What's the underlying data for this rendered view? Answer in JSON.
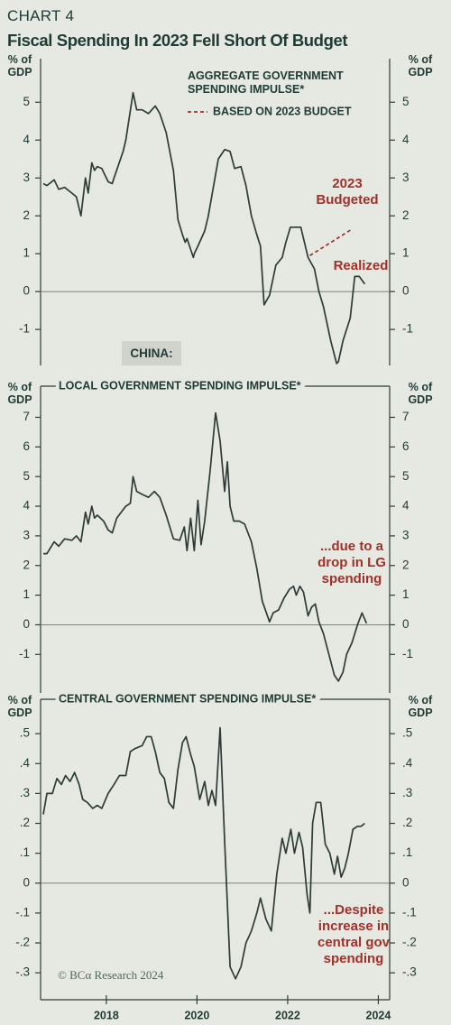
{
  "header": {
    "kicker": "CHART 4",
    "title": "Fiscal Spending In 2023 Fell Short Of Budget"
  },
  "footer": {
    "source": "© BCα Research 2024"
  },
  "chart_data": [
    {
      "type": "line",
      "ylabel": "% of GDP",
      "xlim": [
        2016.55,
        2024.25
      ],
      "ylim": [
        -1.95,
        6.15
      ],
      "yticks": [
        -1,
        0,
        1,
        2,
        3,
        4,
        5
      ],
      "annotations": [
        "2023 Budgeted",
        "Realized",
        "CHINA:"
      ],
      "series": [
        {
          "name": "AGGREGATE GOVERNMENT SPENDING IMPULSE*",
          "color": "#2d3b36",
          "dash": false,
          "x": [
            2016.61,
            2016.69,
            2016.85,
            2016.95,
            2017.08,
            2017.24,
            2017.34,
            2017.44,
            2017.54,
            2017.6,
            2017.68,
            2017.74,
            2017.8,
            2017.9,
            2018.04,
            2018.13,
            2018.17,
            2018.37,
            2018.43,
            2018.59,
            2018.67,
            2018.79,
            2018.93,
            2019.08,
            2019.18,
            2019.32,
            2019.48,
            2019.58,
            2019.68,
            2019.74,
            2019.78,
            2019.92,
            2019.94,
            2020.02,
            2020.17,
            2020.25,
            2020.47,
            2020.61,
            2020.73,
            2020.83,
            2020.97,
            2021.08,
            2021.2,
            2021.32,
            2021.4,
            2021.48,
            2021.6,
            2021.74,
            2021.88,
            2021.96,
            2022.06,
            2022.15,
            2022.29,
            2022.39,
            2022.45,
            2022.59,
            2022.69,
            2022.79,
            2022.95,
            2023.08,
            2023.12,
            2023.22,
            2023.38,
            2023.48,
            2023.58,
            2023.7
          ],
          "values": [
            2.85,
            2.8,
            2.95,
            2.7,
            2.75,
            2.6,
            2.5,
            2.0,
            3.0,
            2.6,
            3.4,
            3.2,
            3.3,
            3.25,
            2.9,
            2.85,
            3.0,
            3.7,
            4.0,
            5.25,
            4.8,
            4.8,
            4.7,
            4.9,
            4.7,
            4.2,
            3.2,
            1.9,
            1.5,
            1.3,
            1.4,
            0.9,
            1.0,
            1.2,
            1.6,
            2.0,
            3.5,
            3.75,
            3.7,
            3.25,
            3.3,
            2.8,
            2.0,
            1.5,
            1.2,
            -0.35,
            -0.1,
            0.7,
            0.9,
            1.3,
            1.7,
            1.7,
            1.7,
            1.2,
            0.9,
            0.6,
            0.0,
            -0.4,
            -1.3,
            -1.9,
            -1.85,
            -1.3,
            -0.7,
            0.4,
            0.4,
            0.2
          ]
        },
        {
          "name": "BASED ON 2023 BUDGET",
          "color": "#a0302a",
          "dash": true,
          "x": [
            2022.49,
            2023.42
          ],
          "values": [
            0.95,
            1.65
          ]
        }
      ]
    },
    {
      "type": "line",
      "ylabel": "% of GDP",
      "xlim": [
        2016.55,
        2024.25
      ],
      "ylim": [
        -2.3,
        8.05
      ],
      "yticks": [
        -1,
        0,
        1,
        2,
        3,
        4,
        5,
        6,
        7
      ],
      "annotations": [
        "...due to a drop in LG spending"
      ],
      "series": [
        {
          "name": "LOCAL GOVERNMENT SPENDING IMPULSE*",
          "color": "#2d3b36",
          "dash": false,
          "x": [
            2016.61,
            2016.69,
            2016.85,
            2016.95,
            2017.08,
            2017.24,
            2017.34,
            2017.44,
            2017.54,
            2017.6,
            2017.68,
            2017.74,
            2017.8,
            2017.94,
            2018.04,
            2018.13,
            2018.23,
            2018.43,
            2018.53,
            2018.59,
            2018.67,
            2018.79,
            2018.93,
            2019.06,
            2019.18,
            2019.32,
            2019.48,
            2019.62,
            2019.72,
            2019.78,
            2019.86,
            2019.94,
            2020.02,
            2020.09,
            2020.17,
            2020.29,
            2020.41,
            2020.51,
            2020.61,
            2020.67,
            2020.73,
            2020.81,
            2020.93,
            2021.05,
            2021.2,
            2021.32,
            2021.44,
            2021.6,
            2021.68,
            2021.8,
            2021.92,
            2022.04,
            2022.13,
            2022.19,
            2022.27,
            2022.35,
            2022.45,
            2022.53,
            2022.61,
            2022.69,
            2022.79,
            2022.91,
            2023.03,
            2023.12,
            2023.22,
            2023.3,
            2023.42,
            2023.54,
            2023.64,
            2023.74
          ],
          "values": [
            2.4,
            2.4,
            2.8,
            2.65,
            2.9,
            2.85,
            3.0,
            2.8,
            3.8,
            3.4,
            4.0,
            3.6,
            3.7,
            3.5,
            3.2,
            3.1,
            3.6,
            4.0,
            4.1,
            5.0,
            4.5,
            4.4,
            4.3,
            4.5,
            4.3,
            3.7,
            2.9,
            2.85,
            3.3,
            2.5,
            3.6,
            2.5,
            4.2,
            2.7,
            3.5,
            5.2,
            7.15,
            6.2,
            4.5,
            5.5,
            4.0,
            3.5,
            3.5,
            3.4,
            2.8,
            1.9,
            0.8,
            0.1,
            0.4,
            0.5,
            0.9,
            1.2,
            1.3,
            1.0,
            1.3,
            1.1,
            0.3,
            0.6,
            0.7,
            0.1,
            -0.3,
            -1.0,
            -1.7,
            -1.9,
            -1.6,
            -1.0,
            -0.6,
            0.0,
            0.4,
            0.05
          ]
        }
      ]
    },
    {
      "type": "line",
      "ylabel": "% of GDP",
      "xlim": [
        2016.55,
        2024.25
      ],
      "xticks": [
        2018,
        2020,
        2022,
        2024
      ],
      "ylim": [
        -0.39,
        0.615
      ],
      "yticks": [
        {
          "value": -0.3,
          "label": "-.3"
        },
        {
          "value": -0.2,
          "label": "-.2"
        },
        {
          "value": -0.1,
          "label": "-.1"
        },
        0,
        {
          "value": 0.1,
          "label": ".1"
        },
        {
          "value": 0.2,
          "label": ".2"
        },
        {
          "value": 0.3,
          "label": ".3"
        },
        {
          "value": 0.4,
          "label": ".4"
        },
        {
          "value": 0.5,
          "label": ".5"
        }
      ],
      "annotations": [
        "...Despite increase in central gov spending"
      ],
      "series": [
        {
          "name": "CENTRAL GOVERNMENT SPENDING IMPULSE*",
          "color": "#2d3b36",
          "dash": false,
          "x": [
            2016.61,
            2016.69,
            2016.81,
            2016.91,
            2017.01,
            2017.1,
            2017.2,
            2017.3,
            2017.4,
            2017.48,
            2017.58,
            2017.7,
            2017.8,
            2017.9,
            2018.04,
            2018.17,
            2018.29,
            2018.43,
            2018.53,
            2018.63,
            2018.79,
            2018.89,
            2018.99,
            2019.08,
            2019.18,
            2019.28,
            2019.38,
            2019.48,
            2019.58,
            2019.68,
            2019.76,
            2019.86,
            2019.94,
            2020.06,
            2020.17,
            2020.25,
            2020.33,
            2020.41,
            2020.51,
            2020.61,
            2020.73,
            2020.85,
            2020.97,
            2021.08,
            2021.2,
            2021.32,
            2021.4,
            2021.52,
            2021.64,
            2021.76,
            2021.88,
            2021.96,
            2022.07,
            2022.15,
            2022.25,
            2022.33,
            2022.43,
            2022.49,
            2022.55,
            2022.63,
            2022.73,
            2022.83,
            2022.93,
            2023.03,
            2023.1,
            2023.18,
            2023.26,
            2023.34,
            2023.44,
            2023.54,
            2023.62,
            2023.7
          ],
          "values": [
            0.23,
            0.3,
            0.3,
            0.35,
            0.33,
            0.36,
            0.34,
            0.37,
            0.33,
            0.28,
            0.27,
            0.25,
            0.26,
            0.25,
            0.3,
            0.33,
            0.36,
            0.36,
            0.44,
            0.45,
            0.46,
            0.49,
            0.49,
            0.44,
            0.37,
            0.35,
            0.27,
            0.25,
            0.38,
            0.47,
            0.49,
            0.43,
            0.39,
            0.28,
            0.34,
            0.26,
            0.31,
            0.26,
            0.52,
            0.14,
            -0.28,
            -0.32,
            -0.28,
            -0.2,
            -0.16,
            -0.1,
            -0.05,
            -0.12,
            -0.16,
            0.03,
            0.15,
            0.1,
            0.18,
            0.1,
            0.17,
            0.12,
            -0.04,
            -0.1,
            0.2,
            0.27,
            0.27,
            0.13,
            0.1,
            0.03,
            0.09,
            0.02,
            0.05,
            0.1,
            0.18,
            0.19,
            0.19,
            0.2
          ]
        }
      ]
    }
  ]
}
